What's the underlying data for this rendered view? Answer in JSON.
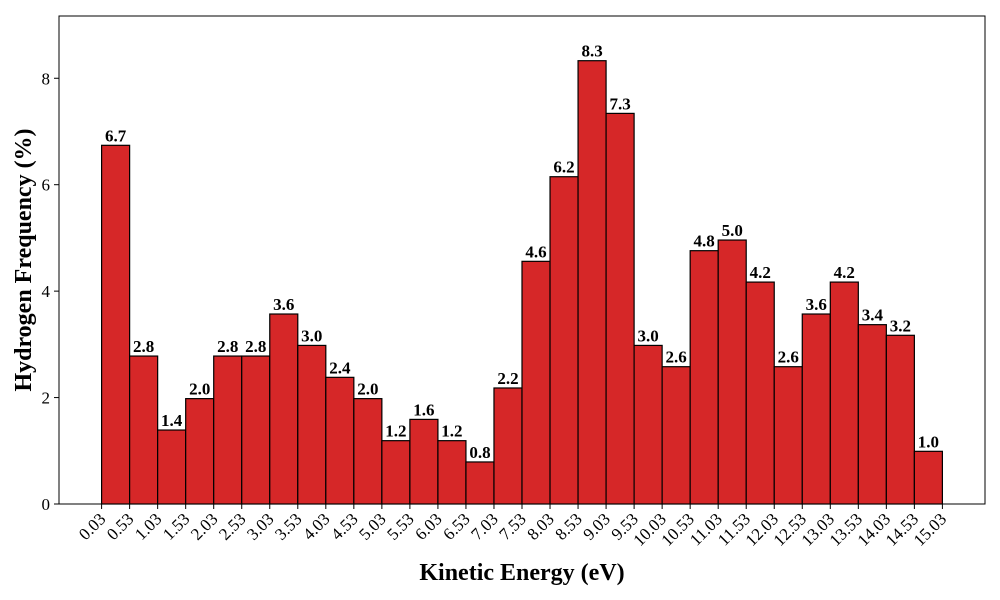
{
  "chart_data": {
    "type": "bar",
    "title": "",
    "xlabel": "Kinetic Energy (eV)",
    "ylabel": "Hydrogen Frequency (%)",
    "bin_edges": [
      0.03,
      0.53,
      1.03,
      1.53,
      2.03,
      2.53,
      3.03,
      3.53,
      4.03,
      4.53,
      5.03,
      5.53,
      6.03,
      6.53,
      7.03,
      7.53,
      8.03,
      8.53,
      9.03,
      9.53,
      10.03,
      10.53,
      11.03,
      11.53,
      12.03,
      12.53,
      13.03,
      13.53,
      14.03,
      14.53,
      15.03
    ],
    "tick_labels": [
      "0.03",
      "0.53",
      "1.03",
      "1.53",
      "2.03",
      "2.53",
      "3.03",
      "3.53",
      "4.03",
      "4.53",
      "5.03",
      "5.53",
      "6.03",
      "6.53",
      "7.03",
      "7.53",
      "8.03",
      "8.53",
      "9.03",
      "9.53",
      "10.03",
      "10.53",
      "11.03",
      "11.53",
      "12.03",
      "12.53",
      "13.03",
      "13.53",
      "14.03",
      "14.53",
      "15.03"
    ],
    "values": [
      6.74,
      2.78,
      1.39,
      1.98,
      2.78,
      2.78,
      3.57,
      2.98,
      2.38,
      1.98,
      1.19,
      1.59,
      1.19,
      0.79,
      2.18,
      4.56,
      6.15,
      8.33,
      7.34,
      2.98,
      2.58,
      4.76,
      4.96,
      4.17,
      2.58,
      3.57,
      4.17,
      3.37,
      3.17,
      0.99
    ],
    "value_labels": [
      "6.7",
      "2.8",
      "1.4",
      "2.0",
      "2.8",
      "2.8",
      "3.6",
      "3.0",
      "2.4",
      "2.0",
      "1.2",
      "1.6",
      "1.2",
      "0.8",
      "2.2",
      "4.6",
      "6.2",
      "8.3",
      "7.3",
      "3.0",
      "2.6",
      "4.8",
      "5.0",
      "4.2",
      "2.6",
      "3.6",
      "4.2",
      "3.4",
      "3.2",
      "1.0"
    ],
    "yticks": [
      0,
      2,
      4,
      6,
      8
    ],
    "ylim": [
      0,
      9.17
    ],
    "xlim": [
      -0.73,
      15.79
    ],
    "grid": false,
    "colors": {
      "bar_fill": "#d62728",
      "bar_edge": "#000000"
    }
  }
}
